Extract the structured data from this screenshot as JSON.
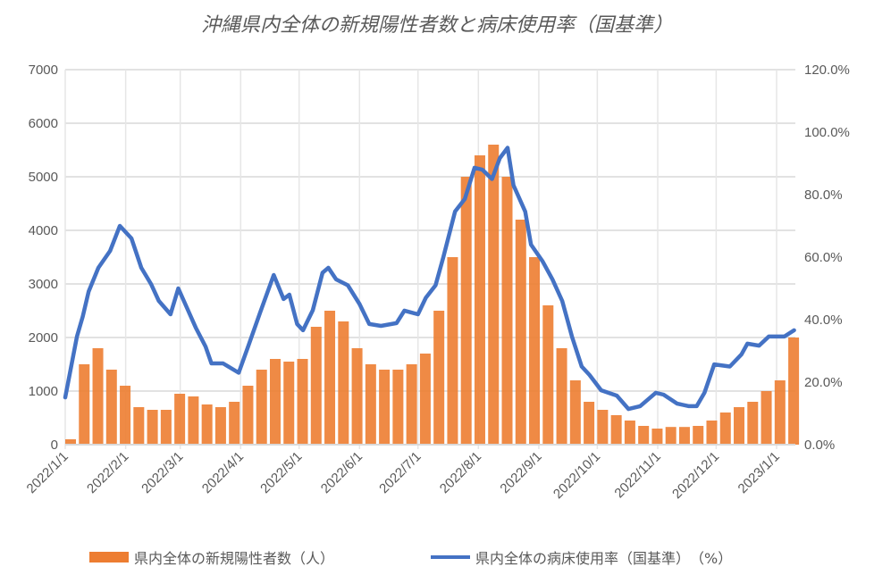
{
  "chart_data": {
    "type": "bar+line",
    "title": "沖縄県内全体の新規陽性者数と病床使用率（国基準）",
    "y_left": {
      "min": 0,
      "max": 7000,
      "ticks": [
        "0",
        "1000",
        "2000",
        "3000",
        "4000",
        "5000",
        "6000",
        "7000"
      ]
    },
    "y_right": {
      "min": 0,
      "max": 120,
      "ticks": [
        "0.0%",
        "20.0%",
        "40.0%",
        "60.0%",
        "80.0%",
        "100.0%",
        "120.0%"
      ]
    },
    "x_ticks": [
      "2022/1/1",
      "2022/2/1",
      "2022/3/1",
      "2022/4/1",
      "2022/5/1",
      "2022/6/1",
      "2022/7/1",
      "2022/8/1",
      "2022/9/1",
      "2022/10/1",
      "2022/11/1",
      "2022/12/1",
      "2023/1/1"
    ],
    "grid": true,
    "legend_position": "bottom",
    "series": [
      {
        "name": "県内全体の新規陽性者数（人）",
        "kind": "bar",
        "axis": "left",
        "color": "#ED7D31",
        "points": [
          [
            "2022-01-01",
            100
          ],
          [
            "2022-01-08",
            1500
          ],
          [
            "2022-01-15",
            1800
          ],
          [
            "2022-01-22",
            1400
          ],
          [
            "2022-01-29",
            1100
          ],
          [
            "2022-02-05",
            700
          ],
          [
            "2022-02-12",
            650
          ],
          [
            "2022-02-19",
            650
          ],
          [
            "2022-02-26",
            950
          ],
          [
            "2022-03-05",
            900
          ],
          [
            "2022-03-12",
            750
          ],
          [
            "2022-03-19",
            700
          ],
          [
            "2022-03-26",
            800
          ],
          [
            "2022-04-02",
            1100
          ],
          [
            "2022-04-09",
            1400
          ],
          [
            "2022-04-16",
            1600
          ],
          [
            "2022-04-23",
            1550
          ],
          [
            "2022-04-30",
            1600
          ],
          [
            "2022-05-07",
            2200
          ],
          [
            "2022-05-14",
            2500
          ],
          [
            "2022-05-21",
            2300
          ],
          [
            "2022-05-28",
            1800
          ],
          [
            "2022-06-04",
            1500
          ],
          [
            "2022-06-11",
            1400
          ],
          [
            "2022-06-18",
            1400
          ],
          [
            "2022-06-25",
            1500
          ],
          [
            "2022-07-02",
            1700
          ],
          [
            "2022-07-09",
            2500
          ],
          [
            "2022-07-16",
            3500
          ],
          [
            "2022-07-23",
            5000
          ],
          [
            "2022-07-30",
            5400
          ],
          [
            "2022-08-06",
            5600
          ],
          [
            "2022-08-13",
            5000
          ],
          [
            "2022-08-20",
            4200
          ],
          [
            "2022-08-27",
            3500
          ],
          [
            "2022-09-03",
            2600
          ],
          [
            "2022-09-10",
            1800
          ],
          [
            "2022-09-17",
            1200
          ],
          [
            "2022-09-24",
            800
          ],
          [
            "2022-10-01",
            650
          ],
          [
            "2022-10-08",
            550
          ],
          [
            "2022-10-15",
            450
          ],
          [
            "2022-10-22",
            350
          ],
          [
            "2022-10-29",
            300
          ],
          [
            "2022-11-05",
            330
          ],
          [
            "2022-11-12",
            330
          ],
          [
            "2022-11-19",
            350
          ],
          [
            "2022-11-26",
            450
          ],
          [
            "2022-12-03",
            600
          ],
          [
            "2022-12-10",
            700
          ],
          [
            "2022-12-17",
            800
          ],
          [
            "2022-12-24",
            1000
          ],
          [
            "2022-12-31",
            1200
          ],
          [
            "2023-01-07",
            2000
          ]
        ]
      },
      {
        "name": "県内全体の病床使用率（国基準）　（%）",
        "kind": "line",
        "axis": "right",
        "color": "#4472C4",
        "points": [
          [
            "2022-01-01",
            15.1
          ],
          [
            "2022-01-07",
            34.6
          ],
          [
            "2022-01-10",
            41
          ],
          [
            "2022-01-13",
            49
          ],
          [
            "2022-01-18",
            56.6
          ],
          [
            "2022-01-24",
            62
          ],
          [
            "2022-01-29",
            70
          ],
          [
            "2022-02-04",
            66
          ],
          [
            "2022-02-09",
            56.6
          ],
          [
            "2022-02-14",
            51.4
          ],
          [
            "2022-02-18",
            46
          ],
          [
            "2022-02-24",
            41.7
          ],
          [
            "2022-02-28",
            50
          ],
          [
            "2022-03-05",
            43
          ],
          [
            "2022-03-09",
            37.4
          ],
          [
            "2022-03-14",
            31.4
          ],
          [
            "2022-03-17",
            26
          ],
          [
            "2022-03-23",
            26
          ],
          [
            "2022-03-31",
            23
          ],
          [
            "2022-04-05",
            31.7
          ],
          [
            "2022-04-11",
            42.3
          ],
          [
            "2022-04-18",
            54.3
          ],
          [
            "2022-04-23",
            46.6
          ],
          [
            "2022-04-26",
            48
          ],
          [
            "2022-04-30",
            38.6
          ],
          [
            "2022-05-03",
            36.6
          ],
          [
            "2022-05-08",
            43
          ],
          [
            "2022-05-13",
            55
          ],
          [
            "2022-05-16",
            56.6
          ],
          [
            "2022-05-20",
            52.9
          ],
          [
            "2022-05-26",
            51
          ],
          [
            "2022-06-01",
            45
          ],
          [
            "2022-06-06",
            38.6
          ],
          [
            "2022-06-12",
            38
          ],
          [
            "2022-06-20",
            38.9
          ],
          [
            "2022-06-24",
            42.9
          ],
          [
            "2022-07-01",
            41.7
          ],
          [
            "2022-07-05",
            47
          ],
          [
            "2022-07-10",
            51
          ],
          [
            "2022-07-14",
            60
          ],
          [
            "2022-07-20",
            74.6
          ],
          [
            "2022-07-25",
            78.6
          ],
          [
            "2022-07-30",
            88.6
          ],
          [
            "2022-08-03",
            88
          ],
          [
            "2022-08-08",
            85
          ],
          [
            "2022-08-12",
            91.7
          ],
          [
            "2022-08-16",
            95
          ],
          [
            "2022-08-19",
            83
          ],
          [
            "2022-08-25",
            74.6
          ],
          [
            "2022-08-28",
            64
          ],
          [
            "2022-09-03",
            58.6
          ],
          [
            "2022-09-08",
            52.9
          ],
          [
            "2022-09-13",
            46
          ],
          [
            "2022-09-18",
            34.6
          ],
          [
            "2022-09-23",
            25
          ],
          [
            "2022-09-27",
            22.3
          ],
          [
            "2022-10-03",
            17.4
          ],
          [
            "2022-10-11",
            15.7
          ],
          [
            "2022-10-17",
            11.4
          ],
          [
            "2022-10-23",
            12.3
          ],
          [
            "2022-10-31",
            16.6
          ],
          [
            "2022-11-04",
            16
          ],
          [
            "2022-11-11",
            13.1
          ],
          [
            "2022-11-17",
            12.3
          ],
          [
            "2022-11-21",
            12.3
          ],
          [
            "2022-11-25",
            16.6
          ],
          [
            "2022-11-30",
            25.7
          ],
          [
            "2022-12-08",
            25
          ],
          [
            "2022-12-14",
            28.9
          ],
          [
            "2022-12-17",
            32.3
          ],
          [
            "2022-12-23",
            31.7
          ],
          [
            "2022-12-28",
            34.6
          ],
          [
            "2023-01-05",
            34.6
          ],
          [
            "2023-01-10",
            36.6
          ]
        ]
      }
    ]
  }
}
